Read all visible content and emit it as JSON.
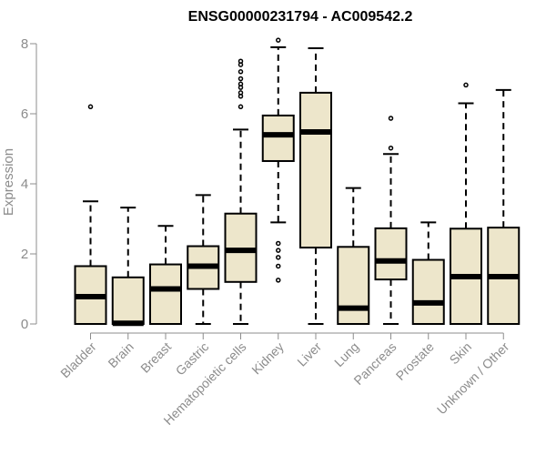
{
  "chart_data": {
    "type": "boxplot",
    "title": "ENSG00000231794 - AC009542.2",
    "xlabel": "",
    "ylabel": "Expression",
    "ylim": [
      0,
      8
    ],
    "yticks": [
      0,
      2,
      4,
      6,
      8
    ],
    "box_fill": "#ede6cb",
    "stroke": "#000000",
    "axis_color": "#8c8c8c",
    "categories": [
      "Bladder",
      "Brain",
      "Breast",
      "Gastric",
      "Hematopoietic cells",
      "Kidney",
      "Liver",
      "Lung",
      "Pancreas",
      "Prostate",
      "Skin",
      "Unknown / Other"
    ],
    "boxes": [
      {
        "name": "Bladder",
        "whisker_low": 0,
        "q1": 0,
        "median": 0.78,
        "q3": 1.65,
        "whisker_high": 3.5,
        "outliers": [
          6.2
        ]
      },
      {
        "name": "Brain",
        "whisker_low": 0,
        "q1": 0,
        "median": 0.02,
        "q3": 1.33,
        "whisker_high": 3.32,
        "outliers": []
      },
      {
        "name": "Breast",
        "whisker_low": 0,
        "q1": 0,
        "median": 1.0,
        "q3": 1.7,
        "whisker_high": 2.8,
        "outliers": []
      },
      {
        "name": "Gastric",
        "whisker_low": 0,
        "q1": 1.0,
        "median": 1.65,
        "q3": 2.22,
        "whisker_high": 3.68,
        "outliers": []
      },
      {
        "name": "Hematopoietic cells",
        "whisker_low": 0,
        "q1": 1.2,
        "median": 2.1,
        "q3": 3.15,
        "whisker_high": 5.55,
        "outliers": [
          6.2,
          6.5,
          6.6,
          6.75,
          6.85,
          7.0,
          7.2,
          7.4,
          7.5
        ]
      },
      {
        "name": "Kidney",
        "whisker_low": 2.9,
        "q1": 4.65,
        "median": 5.4,
        "q3": 5.95,
        "whisker_high": 7.9,
        "outliers": [
          1.25,
          1.65,
          1.9,
          2.1,
          2.3,
          8.1
        ]
      },
      {
        "name": "Liver",
        "whisker_low": 0,
        "q1": 2.18,
        "median": 5.48,
        "q3": 6.6,
        "whisker_high": 7.87,
        "outliers": []
      },
      {
        "name": "Lung",
        "whisker_low": 0,
        "q1": 0,
        "median": 0.45,
        "q3": 2.2,
        "whisker_high": 3.88,
        "outliers": []
      },
      {
        "name": "Pancreas",
        "whisker_low": 0,
        "q1": 1.27,
        "median": 1.8,
        "q3": 2.73,
        "whisker_high": 4.85,
        "outliers": [
          5.02,
          5.87
        ]
      },
      {
        "name": "Prostate",
        "whisker_low": 0,
        "q1": 0,
        "median": 0.6,
        "q3": 1.83,
        "whisker_high": 2.9,
        "outliers": []
      },
      {
        "name": "Skin",
        "whisker_low": 0,
        "q1": 0,
        "median": 1.35,
        "q3": 2.72,
        "whisker_high": 6.3,
        "outliers": [
          6.82
        ]
      },
      {
        "name": "Unknown / Other",
        "whisker_low": 0,
        "q1": 0,
        "median": 1.35,
        "q3": 2.75,
        "whisker_high": 6.68,
        "outliers": []
      }
    ]
  }
}
